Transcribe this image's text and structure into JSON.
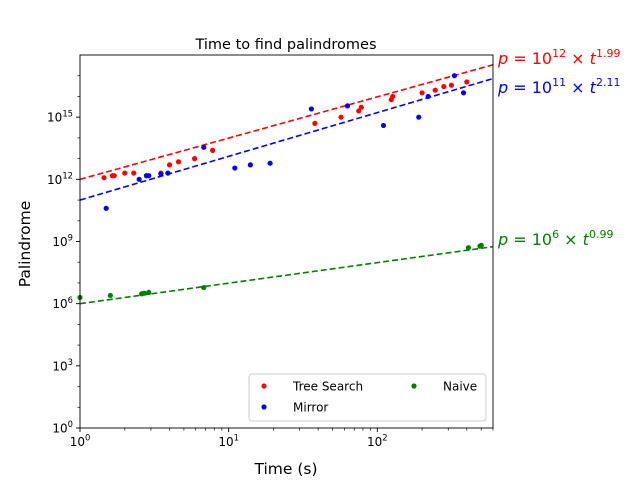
{
  "chart_data": {
    "type": "scatter",
    "title": "Time to find palindromes",
    "xlabel": "Time (s)",
    "ylabel": "Palindrome",
    "x_scale": "log",
    "y_scale": "log",
    "xlim": [
      1,
      600
    ],
    "ylim": [
      1,
      1e+18
    ],
    "x_ticks": [
      {
        "value": 1,
        "base": "10",
        "exp": "0"
      },
      {
        "value": 10,
        "base": "10",
        "exp": "1"
      },
      {
        "value": 100,
        "base": "10",
        "exp": "2"
      }
    ],
    "y_ticks": [
      {
        "value": 1,
        "base": "10",
        "exp": "0"
      },
      {
        "value": 1000,
        "base": "10",
        "exp": "3"
      },
      {
        "value": 1000000,
        "base": "10",
        "exp": "6"
      },
      {
        "value": 1000000000,
        "base": "10",
        "exp": "9"
      },
      {
        "value": 1000000000000,
        "base": "10",
        "exp": "12"
      },
      {
        "value": 1000000000000000,
        "base": "10",
        "exp": "15"
      }
    ],
    "grid": false,
    "legend_position": "lower-right",
    "series": [
      {
        "name": "Tree Search",
        "color": "#ff0000",
        "points": [
          [
            1.45,
            1200000000000.0
          ],
          [
            1.65,
            1500000000000.0
          ],
          [
            1.7,
            1500000000000.0
          ],
          [
            2.0,
            2000000000000.0
          ],
          [
            2.3,
            2000000000000.0
          ],
          [
            2.8,
            1500000000000.0
          ],
          [
            3.5,
            2000000000000.0
          ],
          [
            4.0,
            5000000000000.0
          ],
          [
            4.6,
            7000000000000.0
          ],
          [
            5.9,
            10000000000000.0
          ],
          [
            7.8,
            25000000000000.0
          ],
          [
            38,
            500000000000000.0
          ],
          [
            57,
            1000000000000000.0
          ],
          [
            75,
            2000000000000000.0
          ],
          [
            78,
            3000000000000000.0
          ],
          [
            124,
            7000000000000000.0
          ],
          [
            127,
            1e+16
          ],
          [
            200,
            1.5e+16
          ],
          [
            245,
            2e+16
          ],
          [
            280,
            3e+16
          ],
          [
            315,
            3.5e+16
          ],
          [
            400,
            5e+16
          ]
        ],
        "fit": {
          "a": 1000000000000.0,
          "b": 1.99,
          "label": "p = 10^12 × t^1.99"
        }
      },
      {
        "name": "Mirror",
        "color": "#0000ff",
        "points": [
          [
            1.5,
            40000000000.0
          ],
          [
            2.5,
            1000000000000.0
          ],
          [
            2.8,
            1500000000000.0
          ],
          [
            2.9,
            1500000000000.0
          ],
          [
            3.5,
            1800000000000.0
          ],
          [
            3.9,
            2000000000000.0
          ],
          [
            6.8,
            35000000000000.0
          ],
          [
            11,
            3500000000000.0
          ],
          [
            14,
            5000000000000.0
          ],
          [
            19,
            6000000000000.0
          ],
          [
            36,
            2500000000000000.0
          ],
          [
            63,
            3500000000000000.0
          ],
          [
            110,
            400000000000000.0
          ],
          [
            190,
            1000000000000000.0
          ],
          [
            220,
            1e+16
          ],
          [
            330,
            1e+17
          ],
          [
            380,
            1.5e+16
          ]
        ],
        "fit": {
          "a": 100000000000.0,
          "b": 2.11,
          "label": "p = 10^11 × t^2.11"
        }
      },
      {
        "name": "Naive",
        "color": "#008000",
        "points": [
          [
            1.0,
            2000000.0
          ],
          [
            1.6,
            2500000.0
          ],
          [
            2.6,
            3000000.0
          ],
          [
            2.7,
            3200000.0
          ],
          [
            2.9,
            3500000.0
          ],
          [
            6.8,
            6000000.0
          ],
          [
            410,
            500000000.0
          ],
          [
            490,
            600000000.0
          ],
          [
            500,
            650000000.0
          ]
        ],
        "fit": {
          "a": 1000000.0,
          "b": 0.99,
          "label": "p = 10^6 × t^0.99"
        }
      }
    ],
    "annotations": [
      {
        "series": "Tree Search",
        "color": "#ff0000",
        "exp_a": "12",
        "exp_b": "1.99"
      },
      {
        "series": "Mirror",
        "color": "#0000ff",
        "exp_a": "11",
        "exp_b": "2.11"
      },
      {
        "series": "Naive",
        "color": "#008000",
        "exp_a": "6",
        "exp_b": "0.99"
      }
    ]
  }
}
